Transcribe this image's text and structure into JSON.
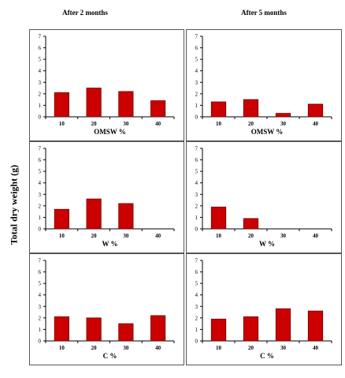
{
  "column_titles": [
    "After 2 months",
    "After 5 months"
  ],
  "shared_ylabel": "Total dry weight (g)",
  "colors": {
    "bar_fill": "#cc0000",
    "bar_edge": "#6b0000",
    "axis": "#000000",
    "panel_border": "#555555"
  },
  "chart_data": [
    {
      "type": "bar",
      "xlabel": "OMSW %",
      "categories": [
        "10",
        "20",
        "30",
        "40"
      ],
      "values": [
        2.1,
        2.5,
        2.2,
        1.4
      ],
      "ylim": [
        0,
        7
      ],
      "yticks": [
        "0",
        "1",
        "2",
        "3",
        "4",
        "5",
        "6",
        "7"
      ],
      "grid": false
    },
    {
      "type": "bar",
      "xlabel": "OMSW %",
      "categories": [
        "10",
        "20",
        "30",
        "40"
      ],
      "values": [
        1.3,
        1.5,
        0.3,
        1.1
      ],
      "ylim": [
        0,
        7
      ],
      "yticks": [
        "0",
        "1",
        "2",
        "3",
        "4",
        "5",
        "6",
        "7"
      ],
      "grid": false
    },
    {
      "type": "bar",
      "xlabel": "W %",
      "categories": [
        "10",
        "20",
        "30",
        "40"
      ],
      "values": [
        1.7,
        2.6,
        2.2,
        0
      ],
      "ylim": [
        0,
        7
      ],
      "yticks": [
        "0",
        "1",
        "2",
        "3",
        "4",
        "5",
        "6",
        "7"
      ],
      "grid": false
    },
    {
      "type": "bar",
      "xlabel": "W %",
      "categories": [
        "10",
        "20",
        "30",
        "40"
      ],
      "values": [
        1.9,
        0.9,
        0,
        0
      ],
      "ylim": [
        0,
        7
      ],
      "yticks": [
        "0",
        "1",
        "2",
        "3",
        "4",
        "5",
        "6",
        "7"
      ],
      "grid": false
    },
    {
      "type": "bar",
      "xlabel": "C %",
      "categories": [
        "10",
        "20",
        "30",
        "40"
      ],
      "values": [
        2.1,
        2.0,
        1.5,
        2.2
      ],
      "ylim": [
        0,
        7
      ],
      "yticks": [
        "0",
        "1",
        "2",
        "3",
        "4",
        "5",
        "6",
        "7"
      ],
      "grid": false
    },
    {
      "type": "bar",
      "xlabel": "C %",
      "categories": [
        "10",
        "20",
        "30",
        "40"
      ],
      "values": [
        1.9,
        2.1,
        2.8,
        2.6
      ],
      "ylim": [
        0,
        7
      ],
      "yticks": [
        "0",
        "1",
        "2",
        "3",
        "4",
        "5",
        "6",
        "7"
      ],
      "grid": false
    }
  ]
}
